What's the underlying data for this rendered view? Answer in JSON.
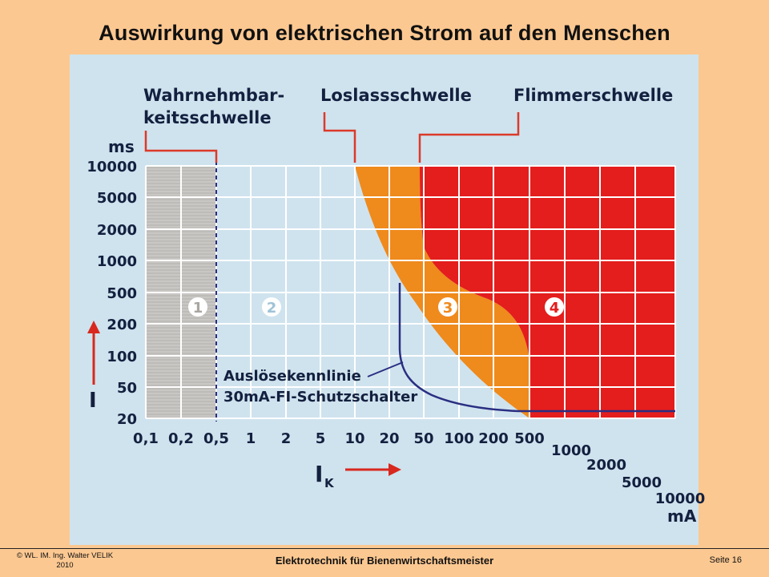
{
  "slide": {
    "title": "Auswirkung von elektrischen Strom auf den Menschen"
  },
  "diagram": {
    "threshold_labels": {
      "perception": [
        "Wahrnehmbar-",
        "keitsschwelle"
      ],
      "letgo": "Loslassschwelle",
      "fibrillation": "Flimmerschwelle"
    },
    "y_unit": "ms",
    "y_ticks": [
      "10000",
      "5000",
      "2000",
      "1000",
      "500",
      "200",
      "100",
      "50",
      "20"
    ],
    "y_axis_symbol": "I",
    "x_ticks_row": [
      "0,1",
      "0,2",
      "0,5",
      "1",
      "2",
      "5",
      "10",
      "20",
      "50",
      "100",
      "200",
      "500"
    ],
    "x_ticks_stair": [
      "1000",
      "2000",
      "5000",
      "10000"
    ],
    "x_unit": "mA",
    "x_axis_symbol": "I",
    "x_axis_subscript": "K",
    "zones": [
      "1",
      "2",
      "3",
      "4"
    ],
    "curve_label": [
      "Auslösekennlinie",
      "30mA-FI-Schutzschalter"
    ],
    "colors": {
      "panel_bg": "#cfe3ee",
      "zone1": "#c9c7c4",
      "zone3": "#ef8a1c",
      "zone4": "#e41d1d",
      "grid": "#ffffff",
      "ink": "#14203f",
      "bracket": "#dc3a2a",
      "curve": "#2a2e82",
      "arrow": "#d8281f"
    }
  },
  "footer": {
    "copyright": [
      "© WL. IM. Ing. Walter VELIK",
      "2010"
    ],
    "center": "Elektrotechnik für Bienenwirtschaftsmeister",
    "page": "Seite 16"
  }
}
